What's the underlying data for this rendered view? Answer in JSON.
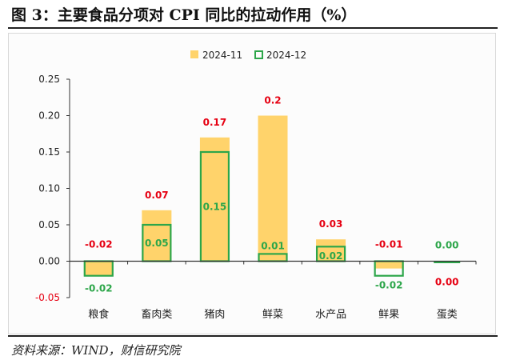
{
  "title": "图 3：主要食品分项对 CPI 同比的拉动作用（%）",
  "source": "资料来源：WIND，财信研究院",
  "colors": {
    "nov": "#FFD36B",
    "dec": "#2DA64A",
    "nov_label": "#E60012",
    "dec_label": "#2DA64A",
    "neg_tick": "#E60012"
  },
  "chart_data": {
    "type": "bar",
    "categories": [
      "粮食",
      "畜肉类",
      "猪肉",
      "鲜菜",
      "水产品",
      "鲜果",
      "蛋类"
    ],
    "series": [
      {
        "name": "2024-11",
        "values": [
          -0.02,
          0.07,
          0.17,
          0.2,
          0.03,
          -0.01,
          0.0
        ],
        "labels": [
          "-0.02",
          "0.07",
          "0.17",
          "0.2",
          "0.03",
          "-0.01",
          "0.00"
        ]
      },
      {
        "name": "2024-12",
        "values": [
          -0.02,
          0.05,
          0.15,
          0.01,
          0.02,
          -0.02,
          0.0
        ],
        "labels": [
          "-0.02",
          "0.05",
          "0.15",
          "0.01",
          "0.02",
          "-0.02",
          "0.00"
        ]
      }
    ],
    "yticks": [
      "0.25",
      "0.20",
      "0.15",
      "0.10",
      "0.05",
      "0.00",
      "-0.05"
    ],
    "ytick_values": [
      0.25,
      0.2,
      0.15,
      0.1,
      0.05,
      0.0,
      -0.05
    ],
    "ylim": [
      -0.05,
      0.25
    ],
    "legend": "top-center",
    "grid": false
  }
}
